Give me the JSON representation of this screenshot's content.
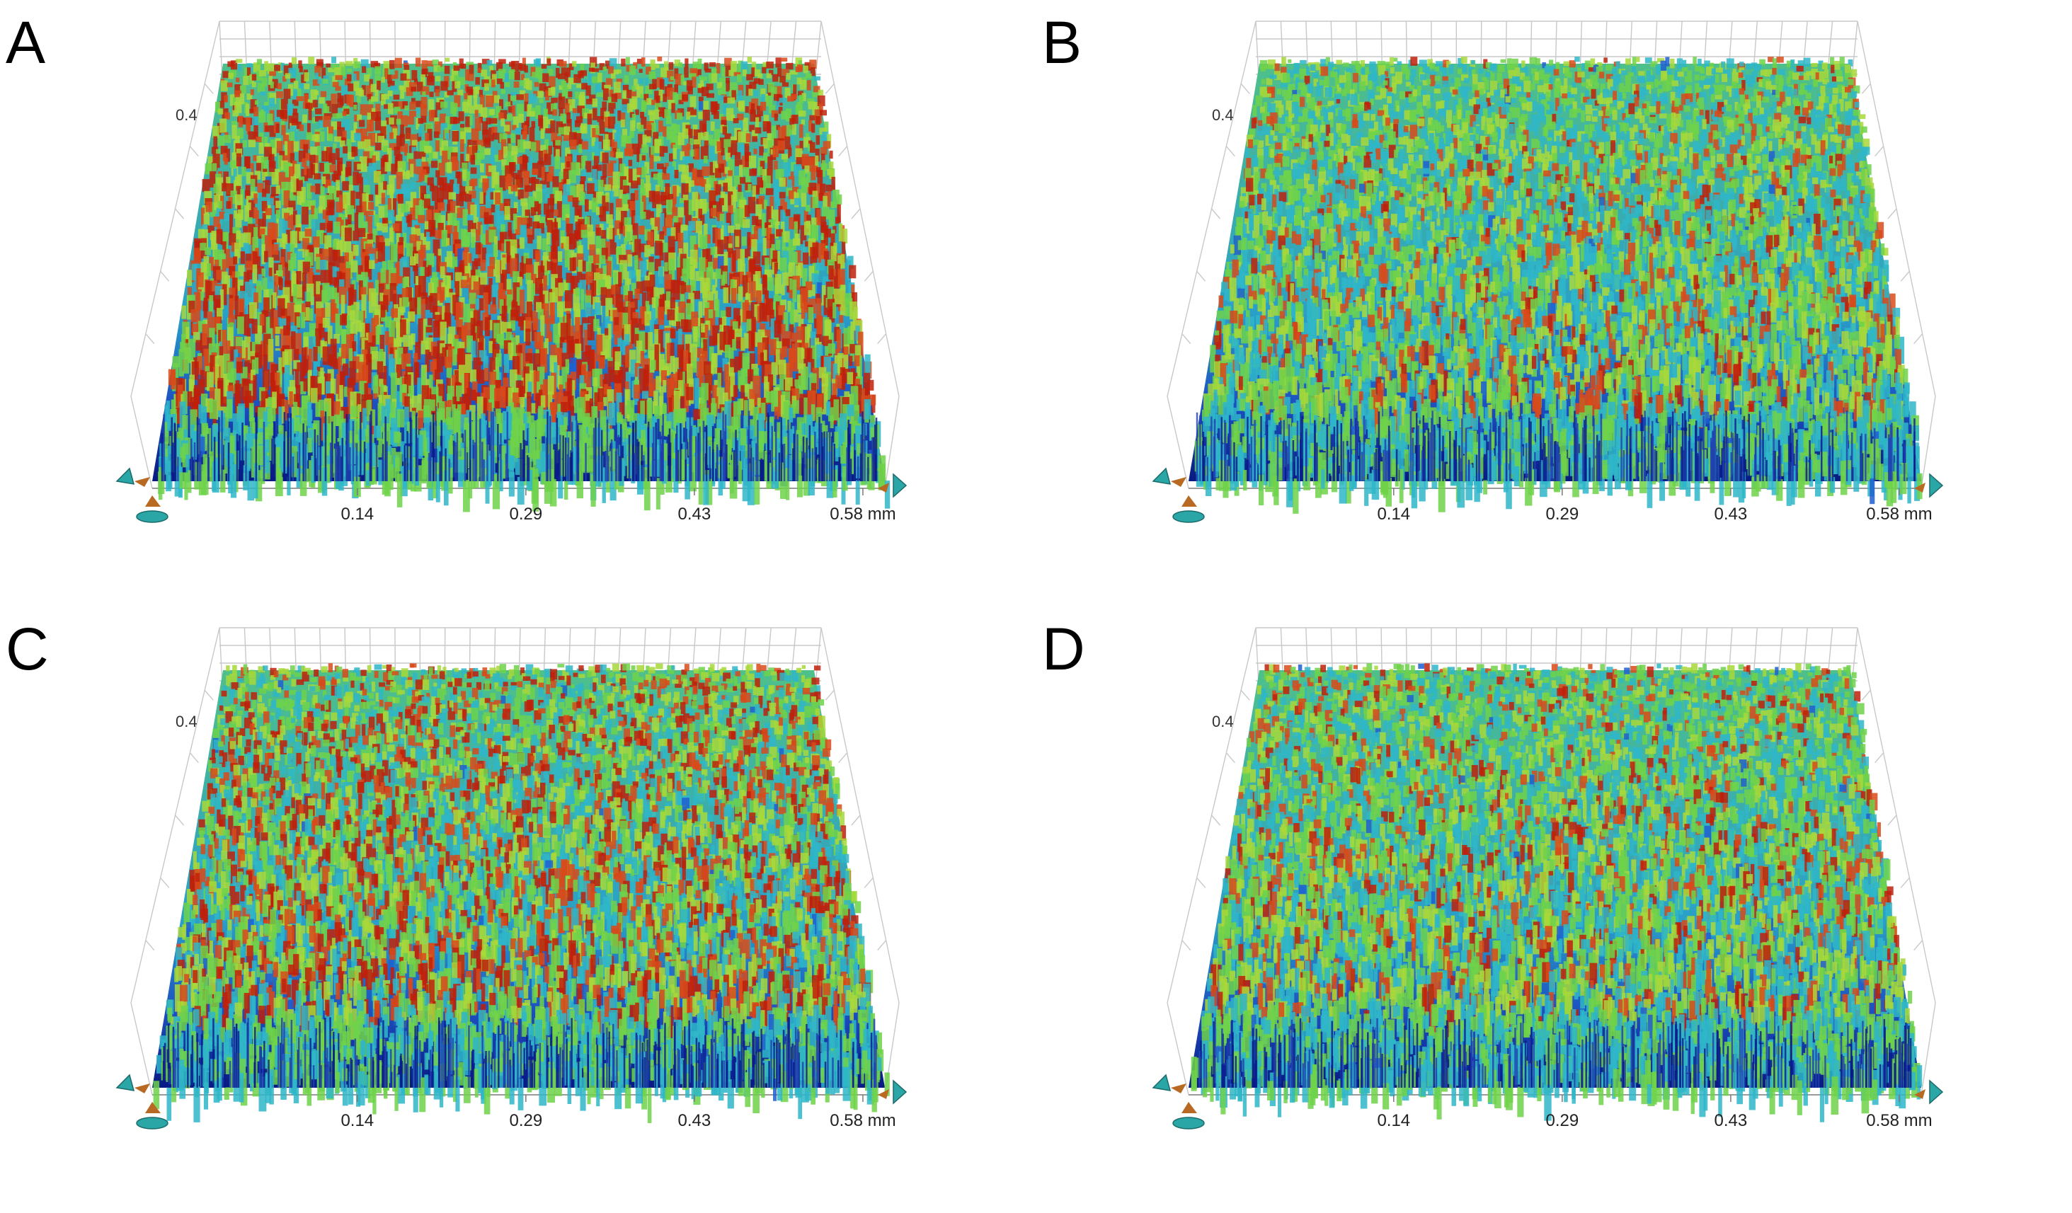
{
  "panels": [
    {
      "letter": "A",
      "x_ticks": [
        "0.14",
        "0.29",
        "0.43",
        "0.58 mm"
      ],
      "z_label": "0.4",
      "hot_fraction": 0.42
    },
    {
      "letter": "B",
      "x_ticks": [
        "0.14",
        "0.29",
        "0.43",
        "0.58 mm"
      ],
      "z_label": "0.4",
      "hot_fraction": 0.06
    },
    {
      "letter": "C",
      "x_ticks": [
        "0.14",
        "0.29",
        "0.43",
        "0.58 mm"
      ],
      "z_label": "0.4",
      "hot_fraction": 0.22
    },
    {
      "letter": "D",
      "x_ticks": [
        "0.14",
        "0.29",
        "0.43",
        "0.58 mm"
      ],
      "z_label": "0.4",
      "hot_fraction": 0.08
    }
  ],
  "colormap": [
    "#0a1a8c",
    "#1f5fd0",
    "#2fb6c8",
    "#6fd24a",
    "#a8d83a",
    "#d84a1a",
    "#c0200a"
  ],
  "icon_colors": {
    "teal": "#2aa6a6",
    "brown": "#b86a22"
  }
}
